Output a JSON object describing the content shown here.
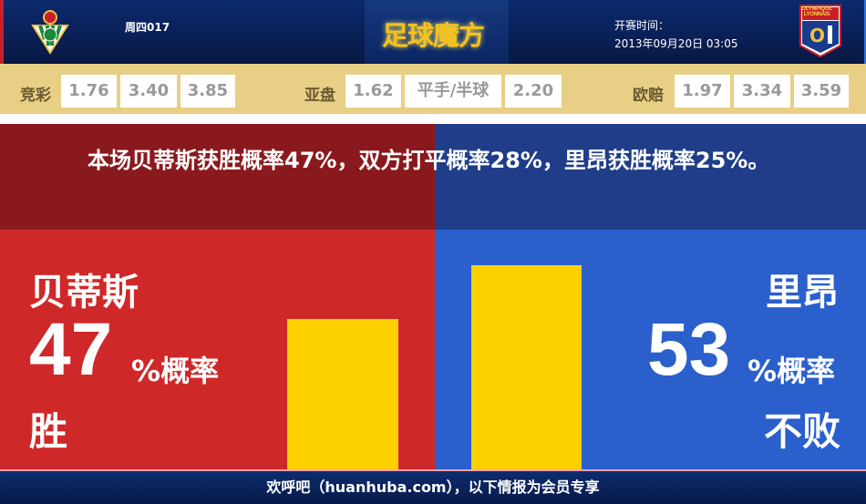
{
  "header": {
    "match_no": "周四017",
    "logo": "足球魔方",
    "kickoff_label": "开赛时间：",
    "kickoff_time": "2013年09月20日 03:05",
    "home_badge": "real-betis-crest-icon",
    "away_badge": "olympique-lyonnais-crest-icon",
    "away_badge_text": "OLYMPIQUE LYONNAIS"
  },
  "odds": {
    "jingcai": {
      "label": "竞彩",
      "values": [
        "1.76",
        "3.40",
        "3.85"
      ]
    },
    "yapan": {
      "label": "亚盘",
      "values": [
        "1.62",
        "平手/半球",
        "2.20"
      ]
    },
    "oupei": {
      "label": "欧赔",
      "values": [
        "1.97",
        "3.34",
        "3.59"
      ]
    }
  },
  "summary": "本场贝蒂斯获胜概率47%，双方打平概率28%，里昂获胜概率25%。",
  "home": {
    "name": "贝蒂斯",
    "percent": "47",
    "unit": "%概率",
    "result": "胜",
    "bar_value": 47
  },
  "away": {
    "name": "里昂",
    "percent": "53",
    "unit": "%概率",
    "result": "不败",
    "bar_value": 53
  },
  "colors": {
    "home": "#cf2829",
    "away": "#2a5fcc",
    "bar": "#fdd000",
    "odds_bg": "#e8cf86"
  },
  "footer": "欢呼吧（huanhuba.com），以下情报为会员专享"
}
